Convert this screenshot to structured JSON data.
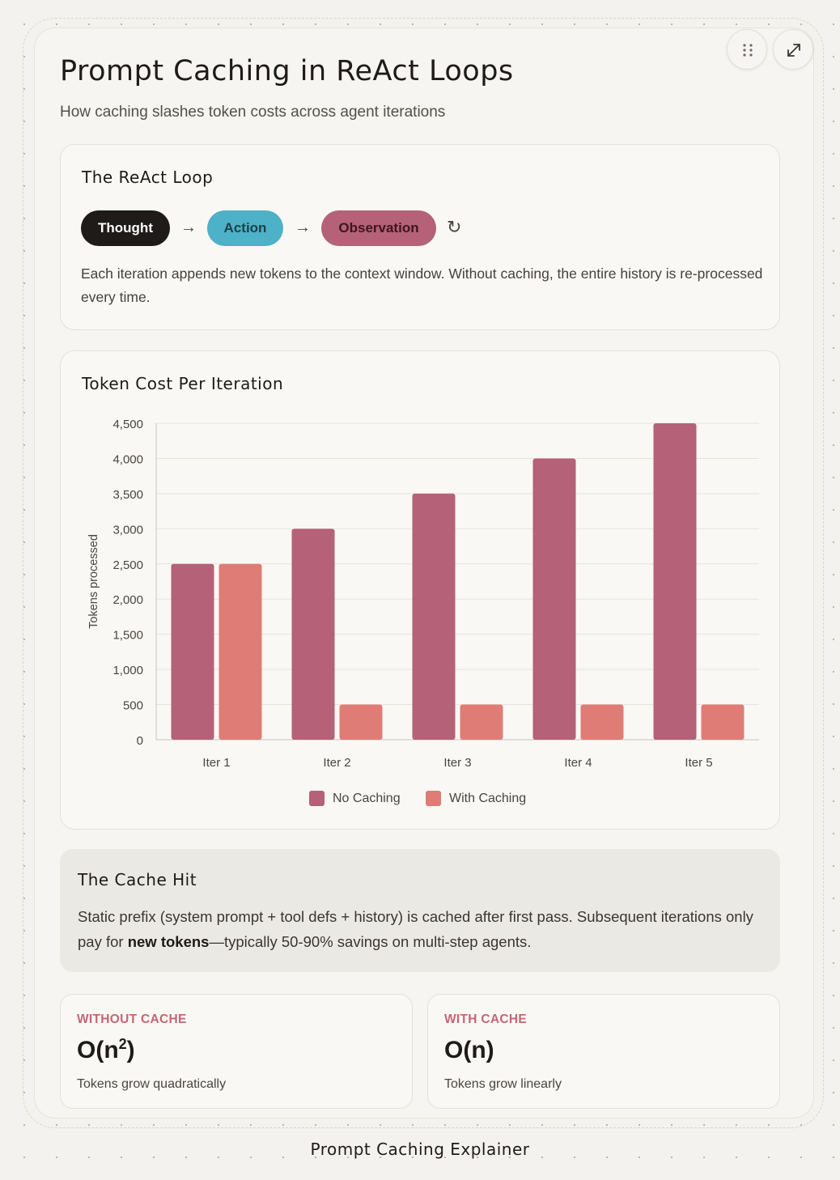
{
  "header": {
    "title": "Prompt Caching in ReAct Loops",
    "subtitle": "How caching slashes token costs across agent iterations"
  },
  "controls": {
    "drag_icon": "grip-dots-icon",
    "expand_icon": "expand-arrows-icon"
  },
  "react_loop": {
    "title": "The ReAct Loop",
    "steps": [
      "Thought",
      "Action",
      "Observation"
    ],
    "arrow": "→",
    "loop_symbol": "↻",
    "description": "Each iteration appends new tokens to the context window. Without caching, the entire history is re-processed every time."
  },
  "chart_section": {
    "title": "Token Cost Per Iteration"
  },
  "chart_data": {
    "type": "bar",
    "categories": [
      "Iter 1",
      "Iter 2",
      "Iter 3",
      "Iter 4",
      "Iter 5"
    ],
    "series": [
      {
        "name": "No Caching",
        "values": [
          2500,
          3000,
          3500,
          4000,
          4500
        ],
        "color": "#b56177"
      },
      {
        "name": "With Caching",
        "values": [
          2500,
          500,
          500,
          500,
          500
        ],
        "color": "#e07c76"
      }
    ],
    "ylabel": "Tokens processed",
    "ylim": [
      0,
      4500
    ],
    "yticks": [
      "0",
      "500",
      "1,000",
      "1,500",
      "2,000",
      "2,500",
      "3,000",
      "3,500",
      "4,000",
      "4,500"
    ],
    "grid": true,
    "legend_position": "bottom-center"
  },
  "cache_hit": {
    "title": "The Cache Hit",
    "text_before": "Static prefix (system prompt + tool defs + history) is cached after first pass. Subsequent iterations only pay for ",
    "text_bold": "new tokens",
    "text_after": "—typically 50-90% savings on multi-step agents."
  },
  "stats": [
    {
      "label": "WITHOUT CACHE",
      "value_base": "O(n",
      "value_sup": "2",
      "value_end": ")",
      "desc": "Tokens grow quadratically"
    },
    {
      "label": "WITH CACHE",
      "value": "O(n)",
      "desc": "Tokens grow linearly"
    }
  ],
  "footer": "Prompt Caching Explainer",
  "colors": {
    "thought_bg": "#1e1b18",
    "action_bg": "#4db1c7",
    "observation_bg": "#b56177",
    "label_accent": "#c46673"
  }
}
